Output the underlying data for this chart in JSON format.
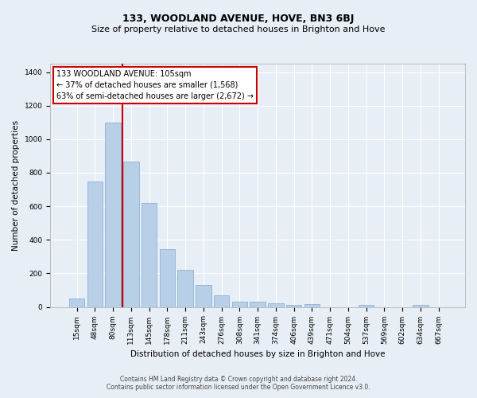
{
  "title": "133, WOODLAND AVENUE, HOVE, BN3 6BJ",
  "subtitle": "Size of property relative to detached houses in Brighton and Hove",
  "xlabel": "Distribution of detached houses by size in Brighton and Hove",
  "ylabel": "Number of detached properties",
  "footnote1": "Contains HM Land Registry data © Crown copyright and database right 2024.",
  "footnote2": "Contains public sector information licensed under the Open Government Licence v3.0.",
  "annotation_title": "133 WOODLAND AVENUE: 105sqm",
  "annotation_line1": "← 37% of detached houses are smaller (1,568)",
  "annotation_line2": "63% of semi-detached houses are larger (2,672) →",
  "bar_labels": [
    "15sqm",
    "48sqm",
    "80sqm",
    "113sqm",
    "145sqm",
    "178sqm",
    "211sqm",
    "243sqm",
    "276sqm",
    "308sqm",
    "341sqm",
    "374sqm",
    "406sqm",
    "439sqm",
    "471sqm",
    "504sqm",
    "537sqm",
    "569sqm",
    "602sqm",
    "634sqm",
    "667sqm"
  ],
  "bar_values": [
    48,
    750,
    1100,
    867,
    620,
    343,
    220,
    133,
    67,
    30,
    30,
    22,
    13,
    15,
    0,
    0,
    12,
    0,
    0,
    12,
    0
  ],
  "bar_color": "#b8cfe8",
  "bar_edge_color": "#7fa8d1",
  "vline_color": "#cc0000",
  "vline_x": 2.5,
  "ylim": [
    0,
    1450
  ],
  "yticks": [
    0,
    200,
    400,
    600,
    800,
    1000,
    1200,
    1400
  ],
  "bg_color": "#e8eef5",
  "grid_color": "#ffffff",
  "annotation_box_facecolor": "#ffffff",
  "annotation_box_edgecolor": "#cc0000",
  "title_fontsize": 9,
  "subtitle_fontsize": 8,
  "axis_label_fontsize": 7.5,
  "tick_fontsize": 6.5,
  "annotation_fontsize": 7,
  "footnote_fontsize": 5.5
}
